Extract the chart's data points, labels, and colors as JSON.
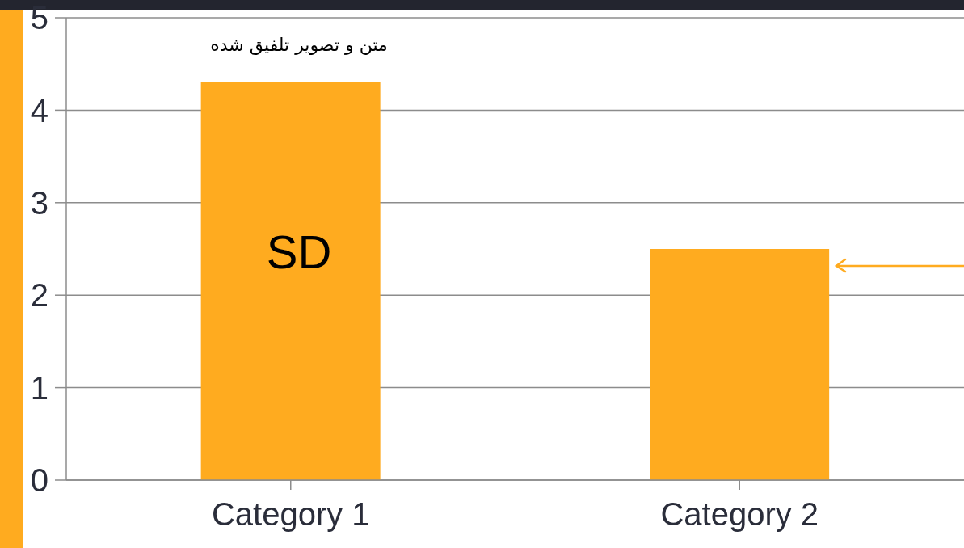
{
  "chart_data": {
    "type": "bar",
    "categories": [
      "Category 1",
      "Category 2"
    ],
    "values": [
      4.3,
      2.5
    ],
    "color": "#ffab1f",
    "ylim": [
      0,
      5
    ],
    "yticks": [
      0,
      1,
      2,
      3,
      4,
      5
    ],
    "grid": "y",
    "annotations": [
      "متن و تصویر تلفیق شده",
      "SD"
    ]
  }
}
